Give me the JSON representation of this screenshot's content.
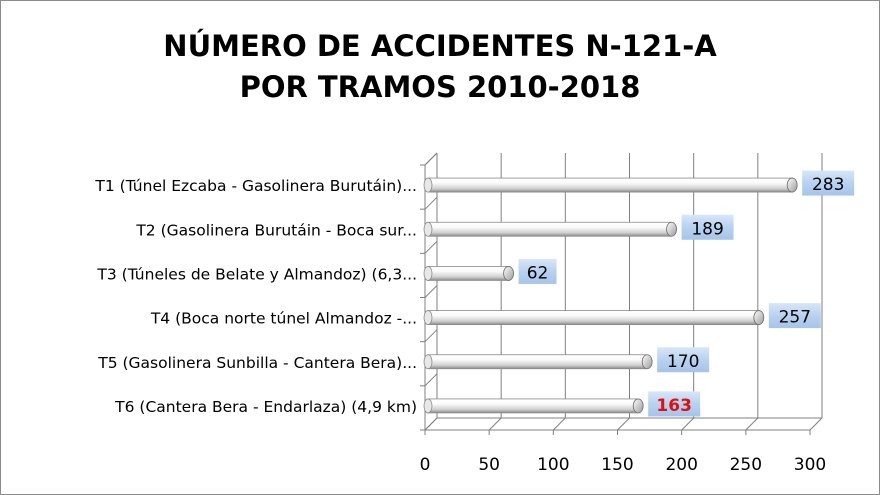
{
  "chart_data": {
    "type": "bar",
    "orientation": "horizontal",
    "title_lines": [
      "NÚMERO DE ACCIDENTES N-121-A",
      "POR TRAMOS 2010-2018"
    ],
    "categories": [
      "T1 (Túnel Ezcaba - Gasolinera Burutáin)...",
      "T2 (Gasolinera Burutáin - Boca sur...",
      "T3 (Túneles de Belate y Almandoz) (6,3...",
      "T4 (Boca norte túnel Almandoz -...",
      "T5 (Gasolinera Sunbilla - Cantera Bera)...",
      "T6 (Cantera Bera - Endarlaza) (4,9 km)"
    ],
    "values": [
      283,
      189,
      62,
      257,
      170,
      163
    ],
    "value_labels": [
      "283",
      "189",
      "62",
      "257",
      "170",
      "163"
    ],
    "highlight_index": 5,
    "highlight_color": "#e01010",
    "bar_color": "#f2f2f2",
    "label_box_color": "#b8d2f0",
    "grid_color": "#808080",
    "xlim": [
      0,
      300
    ],
    "xticks": [
      0,
      50,
      100,
      150,
      200,
      250,
      300
    ],
    "xtick_labels": [
      "0",
      "50",
      "100",
      "150",
      "200",
      "250",
      "300"
    ],
    "grid": true,
    "legend": false,
    "style": "3d-cylinder"
  }
}
